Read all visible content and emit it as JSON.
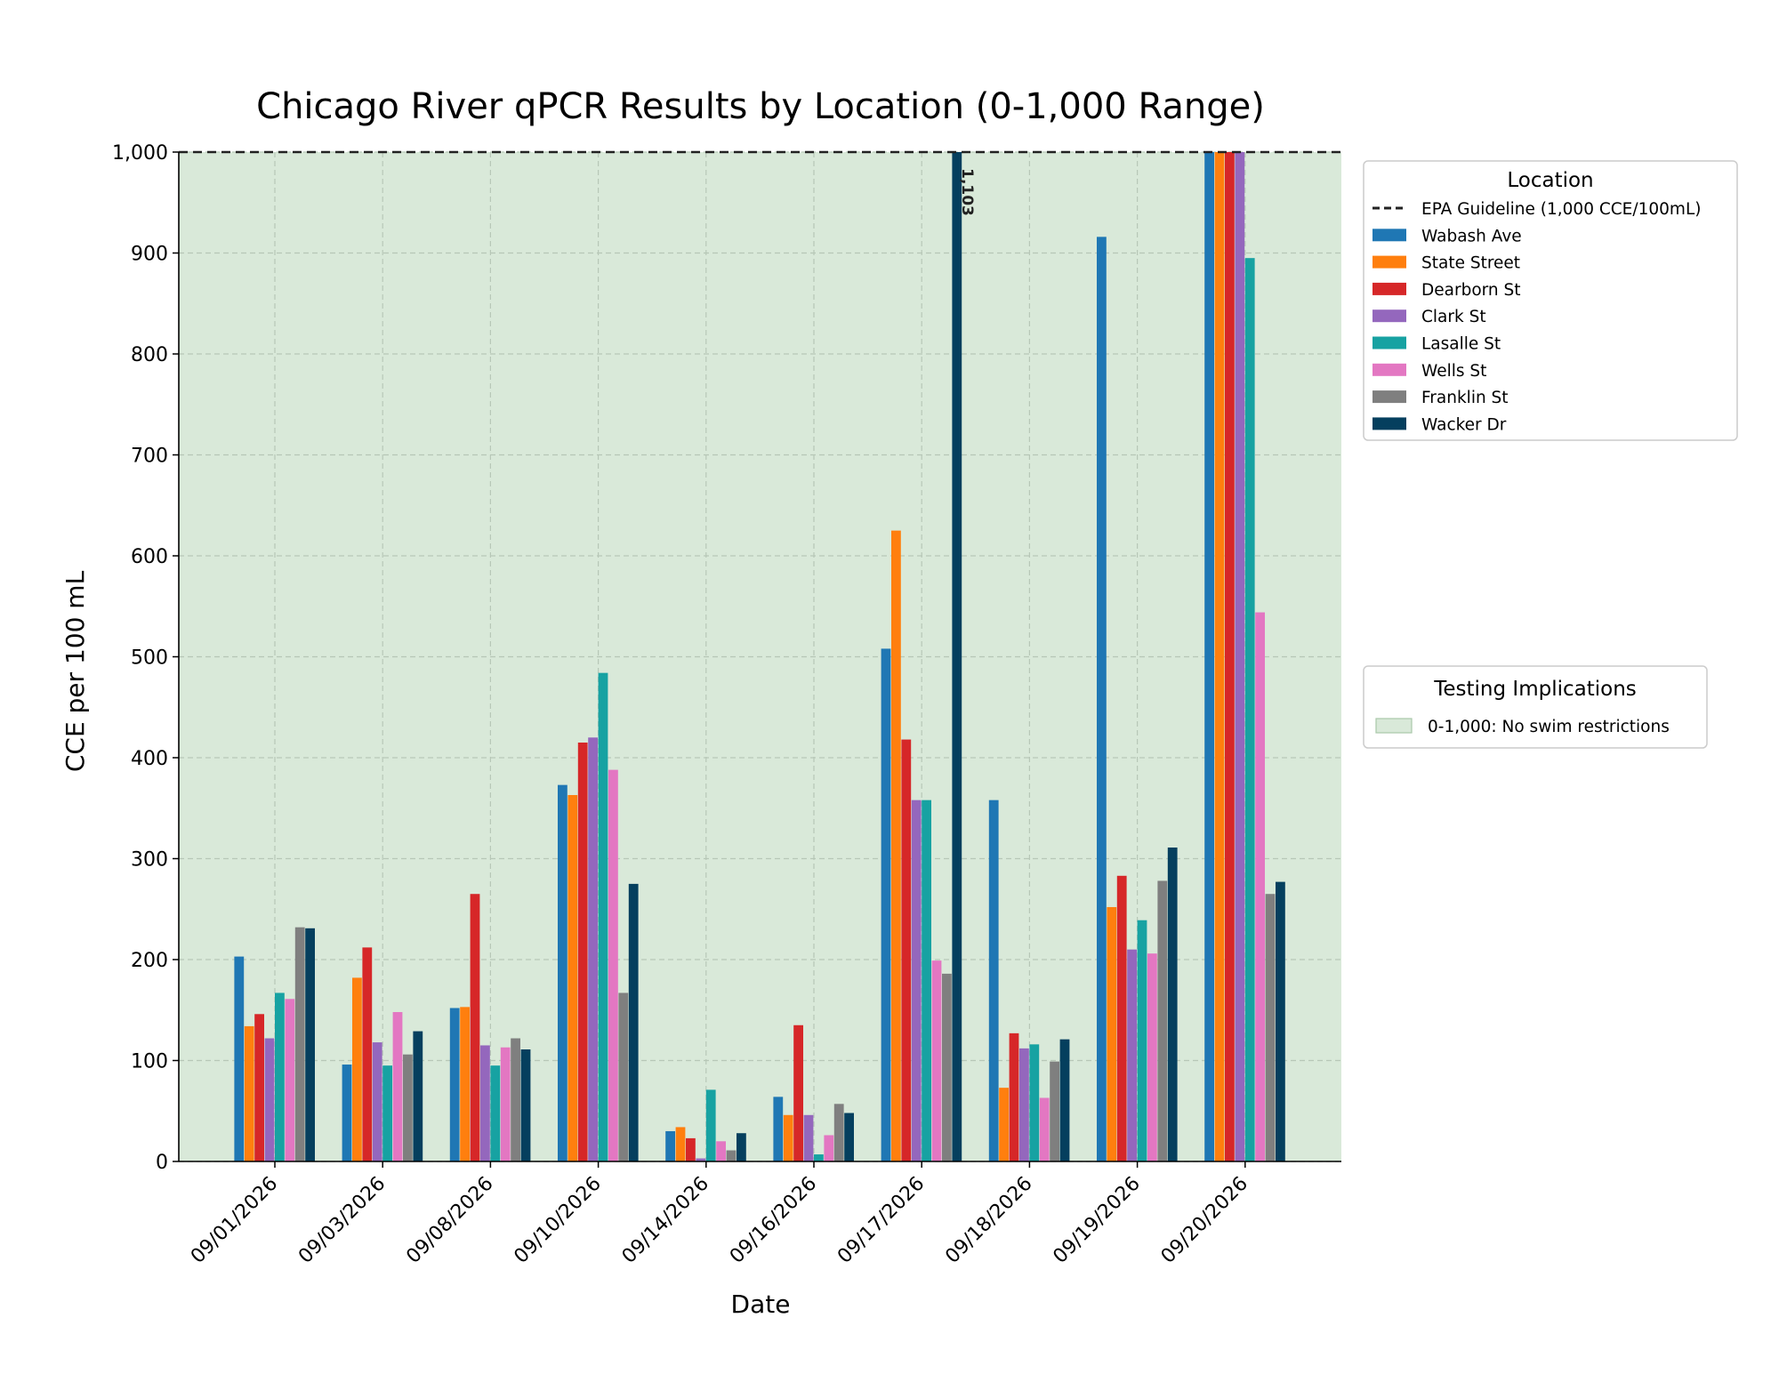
{
  "chart_data": {
    "type": "bar",
    "title": "Chicago River qPCR Results by Location (0-1,000 Range)",
    "xlabel": "Date",
    "ylabel": "CCE per 100 mL",
    "ylim": [
      0,
      1000
    ],
    "yticks": [
      0,
      100,
      200,
      300,
      400,
      500,
      600,
      700,
      800,
      900,
      1000
    ],
    "ytick_labels": [
      "0",
      "100",
      "200",
      "300",
      "400",
      "500",
      "600",
      "700",
      "800",
      "900",
      "1,000"
    ],
    "grid": true,
    "background_color": "#d9e9d9",
    "categories": [
      "09/01/2026",
      "09/03/2026",
      "09/08/2026",
      "09/10/2026",
      "09/14/2026",
      "09/16/2026",
      "09/17/2026",
      "09/18/2026",
      "09/19/2026",
      "09/20/2026"
    ],
    "series": [
      {
        "name": "Wabash Ave",
        "color": "#1f77b4",
        "values": [
          203,
          96,
          152,
          373,
          30,
          64,
          508,
          358,
          916,
          1000
        ]
      },
      {
        "name": "State Street",
        "color": "#ff7f0e",
        "values": [
          134,
          182,
          153,
          363,
          34,
          46,
          625,
          73,
          252,
          1000
        ]
      },
      {
        "name": "Dearborn St",
        "color": "#d62728",
        "values": [
          146,
          212,
          265,
          415,
          23,
          135,
          418,
          127,
          283,
          1000
        ]
      },
      {
        "name": "Clark St",
        "color": "#9467bd",
        "values": [
          122,
          118,
          115,
          420,
          3,
          46,
          358,
          112,
          210,
          1000
        ]
      },
      {
        "name": "Lasalle St",
        "color": "#17a2a2",
        "values": [
          167,
          95,
          95,
          484,
          71,
          7,
          358,
          116,
          239,
          895
        ]
      },
      {
        "name": "Wells St",
        "color": "#e377c2",
        "values": [
          161,
          148,
          113,
          388,
          20,
          26,
          199,
          63,
          206,
          544
        ]
      },
      {
        "name": "Franklin St",
        "color": "#7f7f7f",
        "values": [
          232,
          106,
          122,
          167,
          11,
          57,
          186,
          99,
          278,
          265
        ]
      },
      {
        "name": "Wacker Dr",
        "color": "#053f5e",
        "values": [
          231,
          129,
          111,
          275,
          28,
          48,
          1000,
          121,
          311,
          277
        ]
      }
    ],
    "annotations": [
      {
        "text": "1,103",
        "series": "Wacker Dr",
        "category": "09/17/2026"
      }
    ],
    "reference_line": {
      "label": "EPA Guideline (1,000 CCE/100mL)",
      "value": 1000,
      "style": "dashed",
      "color": "#222222"
    },
    "legend": {
      "title": "Location",
      "placement": "right"
    },
    "implications_legend": {
      "title": "Testing Implications",
      "items": [
        {
          "label": "0-1,000: No swim restrictions",
          "color": "#d9e9d9"
        }
      ]
    }
  }
}
